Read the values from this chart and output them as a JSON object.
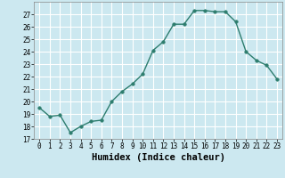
{
  "x": [
    0,
    1,
    2,
    3,
    4,
    5,
    6,
    7,
    8,
    9,
    10,
    11,
    12,
    13,
    14,
    15,
    16,
    17,
    18,
    19,
    20,
    21,
    22,
    23
  ],
  "y": [
    19.5,
    18.8,
    18.9,
    17.5,
    18.0,
    18.4,
    18.5,
    20.0,
    20.8,
    21.4,
    22.2,
    24.1,
    24.8,
    26.2,
    26.2,
    27.3,
    27.3,
    27.2,
    27.2,
    26.4,
    24.0,
    23.3,
    22.9,
    21.8
  ],
  "xlabel": "Humidex (Indice chaleur)",
  "xlim": [
    -0.5,
    23.5
  ],
  "ylim": [
    17,
    28
  ],
  "yticks": [
    17,
    18,
    19,
    20,
    21,
    22,
    23,
    24,
    25,
    26,
    27
  ],
  "xticks": [
    0,
    1,
    2,
    3,
    4,
    5,
    6,
    7,
    8,
    9,
    10,
    11,
    12,
    13,
    14,
    15,
    16,
    17,
    18,
    19,
    20,
    21,
    22,
    23
  ],
  "line_color": "#2d7d6e",
  "marker_size": 2.5,
  "bg_color": "#cce8f0",
  "grid_color": "#ffffff",
  "tick_fontsize": 5.5,
  "xlabel_fontsize": 7.5,
  "line_width": 1.0
}
